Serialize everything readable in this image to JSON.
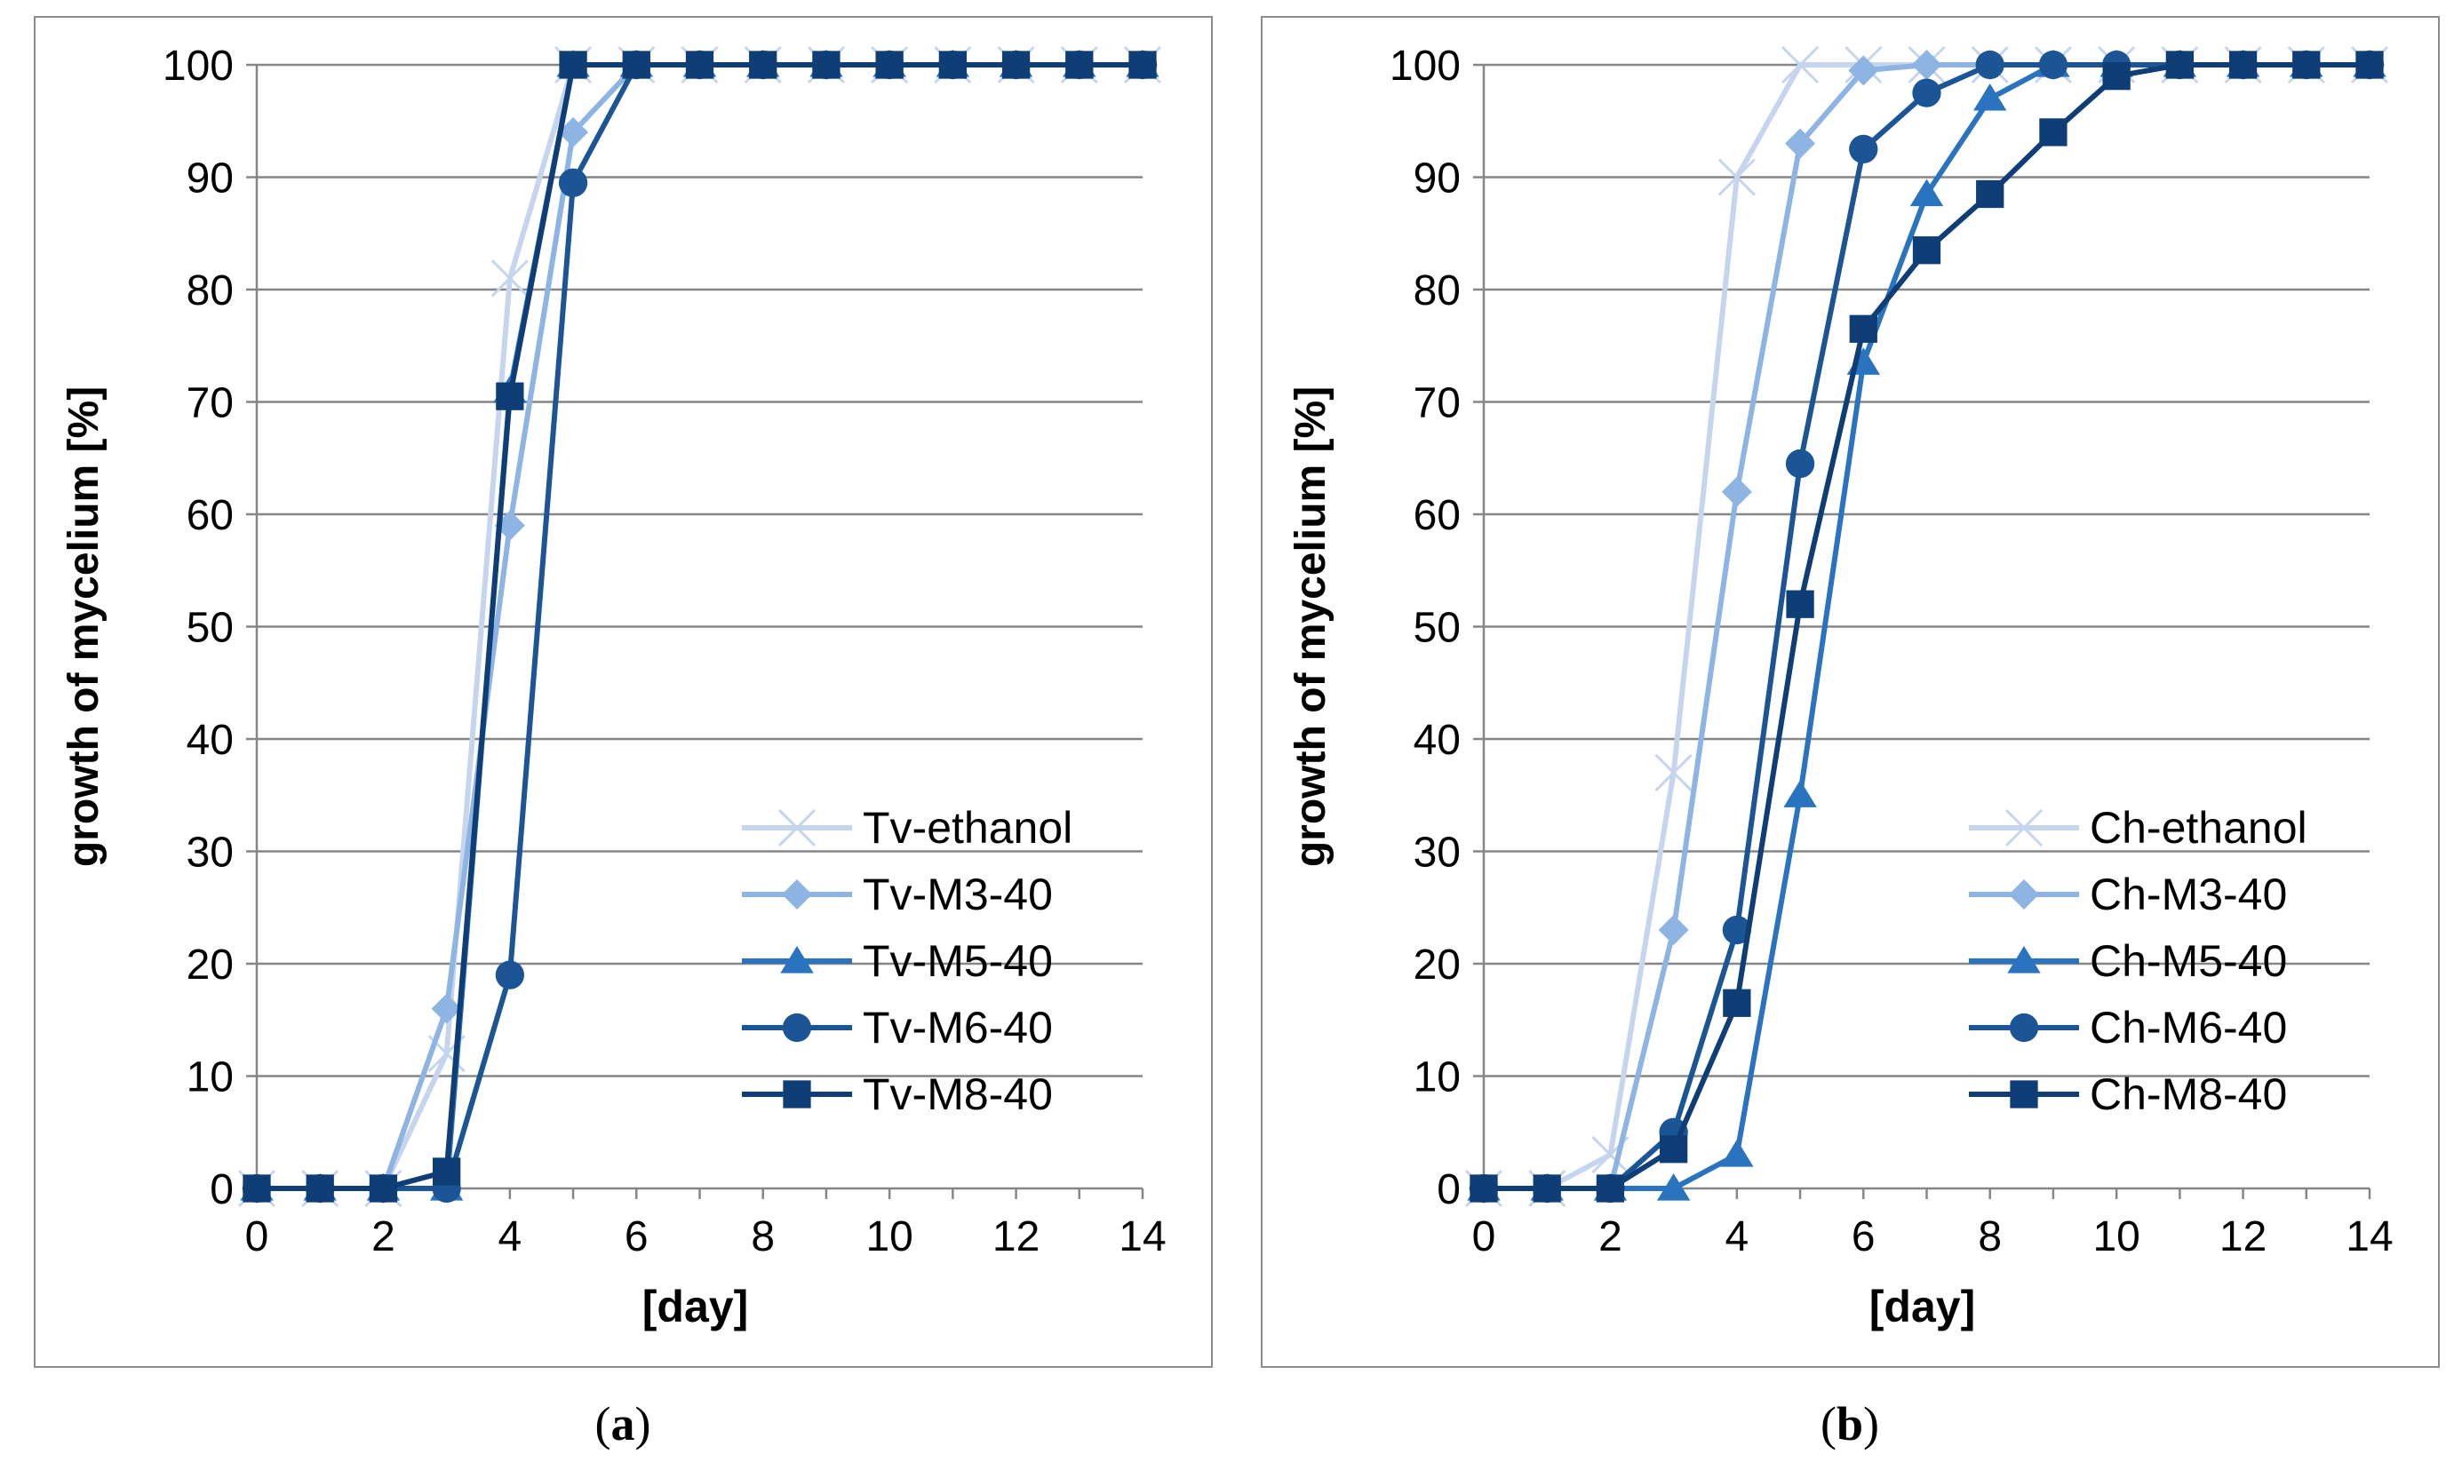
{
  "colors": {
    "gridline": "#868686",
    "axis": "#868686",
    "panel_border": "#8c8c8c",
    "series": [
      "#c6d5ee",
      "#8eb4e3",
      "#2a73bf",
      "#1c5596",
      "#0f3e77"
    ]
  },
  "captions": [
    "a",
    "b"
  ],
  "chart_data": [
    {
      "type": "line",
      "panel": "a",
      "title": "",
      "xlabel": "[day]",
      "ylabel": "growth of mycelium [%]",
      "xlim": [
        0,
        14
      ],
      "ylim": [
        0,
        100
      ],
      "xticks": [
        0,
        2,
        4,
        6,
        8,
        10,
        12,
        14
      ],
      "yticks": [
        0,
        10,
        20,
        30,
        40,
        50,
        60,
        70,
        80,
        90,
        100
      ],
      "grid": "horizontal",
      "legend_position": "bottom-right",
      "x": [
        0,
        1,
        2,
        3,
        4,
        5,
        6,
        7,
        8,
        9,
        10,
        11,
        12,
        13,
        14
      ],
      "series": [
        {
          "name": "Tv-ethanol",
          "marker": "x",
          "values": [
            0,
            0,
            0,
            12,
            81,
            100,
            100,
            100,
            100,
            100,
            100,
            100,
            100,
            100,
            100
          ]
        },
        {
          "name": "Tv-M3-40",
          "marker": "diamond",
          "values": [
            0,
            0,
            0,
            16,
            59,
            94,
            100,
            100,
            100,
            100,
            100,
            100,
            100,
            100,
            100
          ]
        },
        {
          "name": "Tv-M5-40",
          "marker": "triangle",
          "values": [
            0,
            0,
            0,
            0,
            71,
            100,
            100,
            100,
            100,
            100,
            100,
            100,
            100,
            100,
            100
          ]
        },
        {
          "name": "Tv-M6-40",
          "marker": "circle",
          "values": [
            0,
            0,
            0,
            0,
            19,
            89.5,
            100,
            100,
            100,
            100,
            100,
            100,
            100,
            100,
            100
          ]
        },
        {
          "name": "Tv-M8-40",
          "marker": "square",
          "values": [
            0,
            0,
            0,
            1.5,
            70.5,
            100,
            100,
            100,
            100,
            100,
            100,
            100,
            100,
            100,
            100
          ]
        }
      ]
    },
    {
      "type": "line",
      "panel": "b",
      "title": "",
      "xlabel": "[day]",
      "ylabel": "growth of mycelium [%]",
      "xlim": [
        0,
        14
      ],
      "ylim": [
        0,
        100
      ],
      "xticks": [
        0,
        2,
        4,
        6,
        8,
        10,
        12,
        14
      ],
      "yticks": [
        0,
        10,
        20,
        30,
        40,
        50,
        60,
        70,
        80,
        90,
        100
      ],
      "grid": "horizontal",
      "legend_position": "bottom-right",
      "x": [
        0,
        1,
        2,
        3,
        4,
        5,
        6,
        7,
        8,
        9,
        10,
        11,
        12,
        13,
        14
      ],
      "series": [
        {
          "name": "Ch-ethanol",
          "marker": "x",
          "values": [
            0,
            0,
            3,
            37,
            90,
            100,
            100,
            100,
            100,
            100,
            100,
            100,
            100,
            100,
            100
          ]
        },
        {
          "name": "Ch-M3-40",
          "marker": "diamond",
          "values": [
            0,
            0,
            0,
            23,
            62,
            93,
            99.5,
            100,
            100,
            100,
            100,
            100,
            100,
            100,
            100
          ]
        },
        {
          "name": "Ch-M5-40",
          "marker": "triangle",
          "values": [
            0,
            0,
            0,
            0,
            3,
            35,
            73.5,
            88.5,
            97,
            100,
            100,
            100,
            100,
            100,
            100
          ]
        },
        {
          "name": "Ch-M6-40",
          "marker": "circle",
          "values": [
            0,
            0,
            0,
            5,
            23,
            64.5,
            92.5,
            97.5,
            100,
            100,
            100,
            100,
            100,
            100,
            100
          ]
        },
        {
          "name": "Ch-M8-40",
          "marker": "square",
          "values": [
            0,
            0,
            0,
            3.5,
            16.5,
            52,
            76.5,
            83.5,
            88.5,
            94,
            99,
            100,
            100,
            100,
            100
          ]
        }
      ]
    }
  ]
}
